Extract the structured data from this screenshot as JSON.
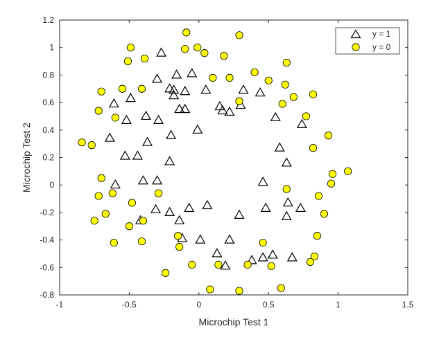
{
  "chart_data": {
    "type": "scatter",
    "xlabel": "Microchip Test 1",
    "ylabel": "Microchip Test 2",
    "xlim": [
      -1,
      1.5
    ],
    "ylim": [
      -0.8,
      1.2
    ],
    "xticks": [
      -1,
      -0.5,
      0,
      0.5,
      1,
      1.5
    ],
    "xtick_labels": [
      "-1",
      "-0.5",
      "0",
      "0.5",
      "1",
      "1.5"
    ],
    "yticks": [
      -0.8,
      -0.6,
      -0.4,
      -0.2,
      0,
      0.2,
      0.4,
      0.6,
      0.8,
      1,
      1.2
    ],
    "ytick_labels": [
      "-0.8",
      "-0.6",
      "-0.4",
      "-0.2",
      "0",
      "0.2",
      "0.4",
      "0.6",
      "0.8",
      "1",
      "1.2"
    ],
    "grid": false,
    "legend_position": "top-right",
    "series": [
      {
        "name": "y = 1",
        "marker": "triangle",
        "color": "#000000",
        "fill": "none",
        "points": [
          [
            -0.27,
            0.96
          ],
          [
            -0.16,
            0.8
          ],
          [
            -0.05,
            0.81
          ],
          [
            -0.3,
            0.77
          ],
          [
            -0.21,
            0.7
          ],
          [
            -0.18,
            0.69
          ],
          [
            -0.1,
            0.68
          ],
          [
            0.05,
            0.69
          ],
          [
            0.32,
            0.69
          ],
          [
            0.44,
            0.67
          ],
          [
            -0.49,
            0.63
          ],
          [
            -0.18,
            0.65
          ],
          [
            0.15,
            0.57
          ],
          [
            -0.61,
            0.59
          ],
          [
            0.3,
            0.58
          ],
          [
            -0.14,
            0.55
          ],
          [
            -0.1,
            0.55
          ],
          [
            0.17,
            0.54
          ],
          [
            0.22,
            0.53
          ],
          [
            -0.38,
            0.5
          ],
          [
            0.55,
            0.49
          ],
          [
            -0.29,
            0.47
          ],
          [
            -0.52,
            0.47
          ],
          [
            0.74,
            0.44
          ],
          [
            -0.01,
            0.4
          ],
          [
            -0.2,
            0.36
          ],
          [
            -0.64,
            0.34
          ],
          [
            -0.37,
            0.31
          ],
          [
            0.58,
            0.27
          ],
          [
            -0.44,
            0.21
          ],
          [
            -0.53,
            0.21
          ],
          [
            -0.21,
            0.17
          ],
          [
            0.63,
            0.16
          ],
          [
            -0.4,
            0.03
          ],
          [
            -0.3,
            0.03
          ],
          [
            -0.6,
            0.0
          ],
          [
            0.46,
            0.02
          ],
          [
            -0.21,
            -0.2
          ],
          [
            -0.07,
            -0.17
          ],
          [
            0.06,
            -0.15
          ],
          [
            -0.31,
            -0.18
          ],
          [
            0.48,
            -0.17
          ],
          [
            0.64,
            -0.13
          ],
          [
            0.73,
            -0.17
          ],
          [
            0.29,
            -0.22
          ],
          [
            -0.42,
            -0.26
          ],
          [
            0.63,
            -0.23
          ],
          [
            -0.14,
            -0.26
          ],
          [
            -0.12,
            -0.39
          ],
          [
            0.01,
            -0.4
          ],
          [
            0.22,
            -0.4
          ],
          [
            0.13,
            -0.5
          ],
          [
            0.38,
            -0.55
          ],
          [
            0.46,
            -0.53
          ],
          [
            0.53,
            -0.51
          ],
          [
            0.67,
            -0.53
          ],
          [
            0.19,
            -0.59
          ]
        ]
      },
      {
        "name": "y = 0",
        "marker": "circle",
        "color": "#000000",
        "fill": "#ffff00",
        "points": [
          [
            -0.09,
            1.11
          ],
          [
            0.29,
            1.09
          ],
          [
            -0.49,
            1.0
          ],
          [
            -0.1,
            0.99
          ],
          [
            -0.01,
            1.0
          ],
          [
            0.04,
            0.96
          ],
          [
            0.18,
            0.94
          ],
          [
            -0.39,
            0.92
          ],
          [
            -0.51,
            0.9
          ],
          [
            0.63,
            0.89
          ],
          [
            0.4,
            0.82
          ],
          [
            0.5,
            0.76
          ],
          [
            0.1,
            0.78
          ],
          [
            0.22,
            0.78
          ],
          [
            0.62,
            0.73
          ],
          [
            -0.55,
            0.7
          ],
          [
            -0.41,
            0.7
          ],
          [
            -0.7,
            0.68
          ],
          [
            0.82,
            0.66
          ],
          [
            0.68,
            0.64
          ],
          [
            0.29,
            0.61
          ],
          [
            0.6,
            0.59
          ],
          [
            -0.72,
            0.54
          ],
          [
            -0.6,
            0.49
          ],
          [
            0.77,
            0.5
          ],
          [
            0.93,
            0.36
          ],
          [
            -0.84,
            0.31
          ],
          [
            -0.77,
            0.29
          ],
          [
            0.82,
            0.27
          ],
          [
            0.96,
            0.08
          ],
          [
            1.07,
            0.1
          ],
          [
            -0.7,
            0.05
          ],
          [
            0.95,
            0.01
          ],
          [
            0.63,
            -0.03
          ],
          [
            -0.72,
            -0.08
          ],
          [
            -0.62,
            -0.06
          ],
          [
            -0.29,
            -0.06
          ],
          [
            0.86,
            -0.08
          ],
          [
            -0.48,
            -0.13
          ],
          [
            0.9,
            -0.21
          ],
          [
            -0.67,
            -0.21
          ],
          [
            -0.75,
            -0.26
          ],
          [
            -0.4,
            -0.26
          ],
          [
            -0.5,
            -0.3
          ],
          [
            0.85,
            -0.37
          ],
          [
            -0.15,
            -0.37
          ],
          [
            -0.41,
            -0.41
          ],
          [
            -0.61,
            -0.42
          ],
          [
            0.46,
            -0.42
          ],
          [
            -0.14,
            -0.45
          ],
          [
            0.83,
            -0.52
          ],
          [
            0.8,
            -0.56
          ],
          [
            0.14,
            -0.58
          ],
          [
            -0.05,
            -0.58
          ],
          [
            0.35,
            -0.58
          ],
          [
            0.52,
            -0.59
          ],
          [
            -0.24,
            -0.64
          ],
          [
            0.59,
            -0.75
          ],
          [
            0.08,
            -0.76
          ],
          [
            0.29,
            -0.77
          ]
        ]
      }
    ]
  }
}
